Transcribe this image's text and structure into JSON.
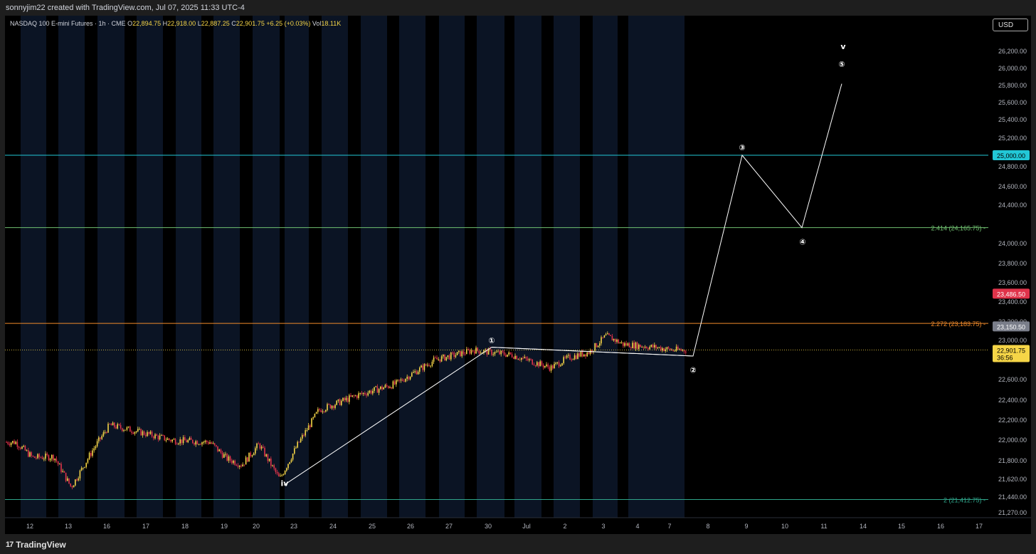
{
  "header": {
    "credit": "sonnyjim22 created with TradingView.com, Jul 07, 2025 11:33 UTC-4"
  },
  "footer": {
    "brand": "TradingView",
    "brand_mark": "17"
  },
  "currency_button": "USD",
  "legend": {
    "symbol": "NASDAQ 100 E-mini Futures · 1h · CME",
    "o_label": "O",
    "o_value": "22,894.75",
    "h_label": "H",
    "h_value": "22,918.00",
    "l_label": "L",
    "l_value": "22,887.25",
    "c_label": "C",
    "c_value": "22,901.75",
    "change": "+6.25 (+0.03%)",
    "vol_label": "Vol",
    "vol_value": "18.11K"
  },
  "colors": {
    "background": "#000000",
    "panel": "#1e1e1e",
    "session_band": "#0b1424",
    "candle_up": "#f5d547",
    "candle_down": "#e0334a",
    "line_25000": "#22c7d6",
    "line_2414": "#6fbf6f",
    "line_2272": "#f08a2a",
    "line_2": "#2fa58a",
    "wave_line": "#ffffff",
    "price_tag_red": "#e0334a",
    "price_tag_gray": "#7a7e8a",
    "price_tag_yellow": "#f5d547",
    "price_tag_cyan": "#22c7d6"
  },
  "chart_data": {
    "type": "candlestick",
    "timeframe": "1h",
    "x_labels": [
      "12",
      "13",
      "16",
      "17",
      "18",
      "19",
      "20",
      "23",
      "24",
      "25",
      "26",
      "27",
      "30",
      "Jul",
      "2",
      "3",
      "4",
      "7",
      "8",
      "9",
      "10",
      "11",
      "14",
      "15",
      "16",
      "17"
    ],
    "y_ticks": [
      "26,200.00",
      "26,000.00",
      "25,800.00",
      "25,600.00",
      "25,400.00",
      "25,200.00",
      "24,800.00",
      "24,600.00",
      "24,400.00",
      "24,000.00",
      "23,800.00",
      "23,600.00",
      "23,400.00",
      "23,200.00",
      "23,000.00",
      "22,600.00",
      "22,400.00",
      "22,200.00",
      "22,000.00",
      "21,800.00",
      "21,620.00",
      "21,440.00",
      "21,270.00"
    ],
    "price_path": [
      {
        "x": "12",
        "y": 21980
      },
      {
        "x": "12",
        "y": 21830
      },
      {
        "x": "13",
        "y": 21840
      },
      {
        "x": "13",
        "y": 21540
      },
      {
        "x": "16",
        "y": 21900
      },
      {
        "x": "16",
        "y": 22150
      },
      {
        "x": "17",
        "y": 22100
      },
      {
        "x": "18",
        "y": 22000
      },
      {
        "x": "19",
        "y": 21980
      },
      {
        "x": "19",
        "y": 21820
      },
      {
        "x": "20",
        "y": 21760
      },
      {
        "x": "20",
        "y": 21960
      },
      {
        "x": "23",
        "y": 21620
      },
      {
        "x": "23",
        "y": 21940
      },
      {
        "x": "24",
        "y": 22300
      },
      {
        "x": "25",
        "y": 22450
      },
      {
        "x": "26",
        "y": 22560
      },
      {
        "x": "27",
        "y": 22800
      },
      {
        "x": "30",
        "y": 22900
      },
      {
        "x": "Jul",
        "y": 22850
      },
      {
        "x": "2",
        "y": 22720
      },
      {
        "x": "2",
        "y": 22820
      },
      {
        "x": "3",
        "y": 22880
      },
      {
        "x": "3",
        "y": 23050
      },
      {
        "x": "4",
        "y": 22960
      },
      {
        "x": "7",
        "y": 22930
      },
      {
        "x": "7",
        "y": 22901.75
      }
    ],
    "horizontal_levels": [
      {
        "value": 25000,
        "label": "",
        "price_tag": "25,000.00"
      },
      {
        "value": 24165.75,
        "label": "2.414 (24,165.75)",
        "price_tag": ""
      },
      {
        "value": 23183.75,
        "label": "2.272 (23,183.75)",
        "price_tag": ""
      },
      {
        "value": 21412.75,
        "label": "2 (21,412.75)",
        "price_tag": ""
      }
    ],
    "price_tags": [
      {
        "value": 23486.5,
        "text": "23,486.50"
      },
      {
        "value": 23150.5,
        "text": "23,150.50"
      },
      {
        "value": 22901.75,
        "text": "22,901.75",
        "countdown": "36:56"
      }
    ],
    "current_price": 22901.75,
    "wave_labels": [
      {
        "text": "iv",
        "x": "23",
        "y": 21580
      },
      {
        "text": "①",
        "x": "30",
        "y": 23000
      },
      {
        "text": "②",
        "x": "8",
        "y": 22700
      },
      {
        "text": "③",
        "x": "9",
        "y": 25090
      },
      {
        "text": "④",
        "x": "10",
        "y": 24020
      },
      {
        "text": "⑤",
        "x": "11",
        "y": 26050
      },
      {
        "text": "v",
        "x": "11",
        "y": 26260
      }
    ],
    "wave_path": [
      {
        "x": "23",
        "y": 21560
      },
      {
        "x": "30",
        "y": 22930
      },
      {
        "x": "8",
        "y": 22840
      },
      {
        "x": "9",
        "y": 25000
      },
      {
        "x": "10",
        "y": 24165
      },
      {
        "x": "11",
        "y": 25820
      }
    ],
    "wave_2_projection": [
      {
        "x": "30",
        "y": 22930
      },
      {
        "x": "8",
        "y": 22840
      }
    ]
  }
}
